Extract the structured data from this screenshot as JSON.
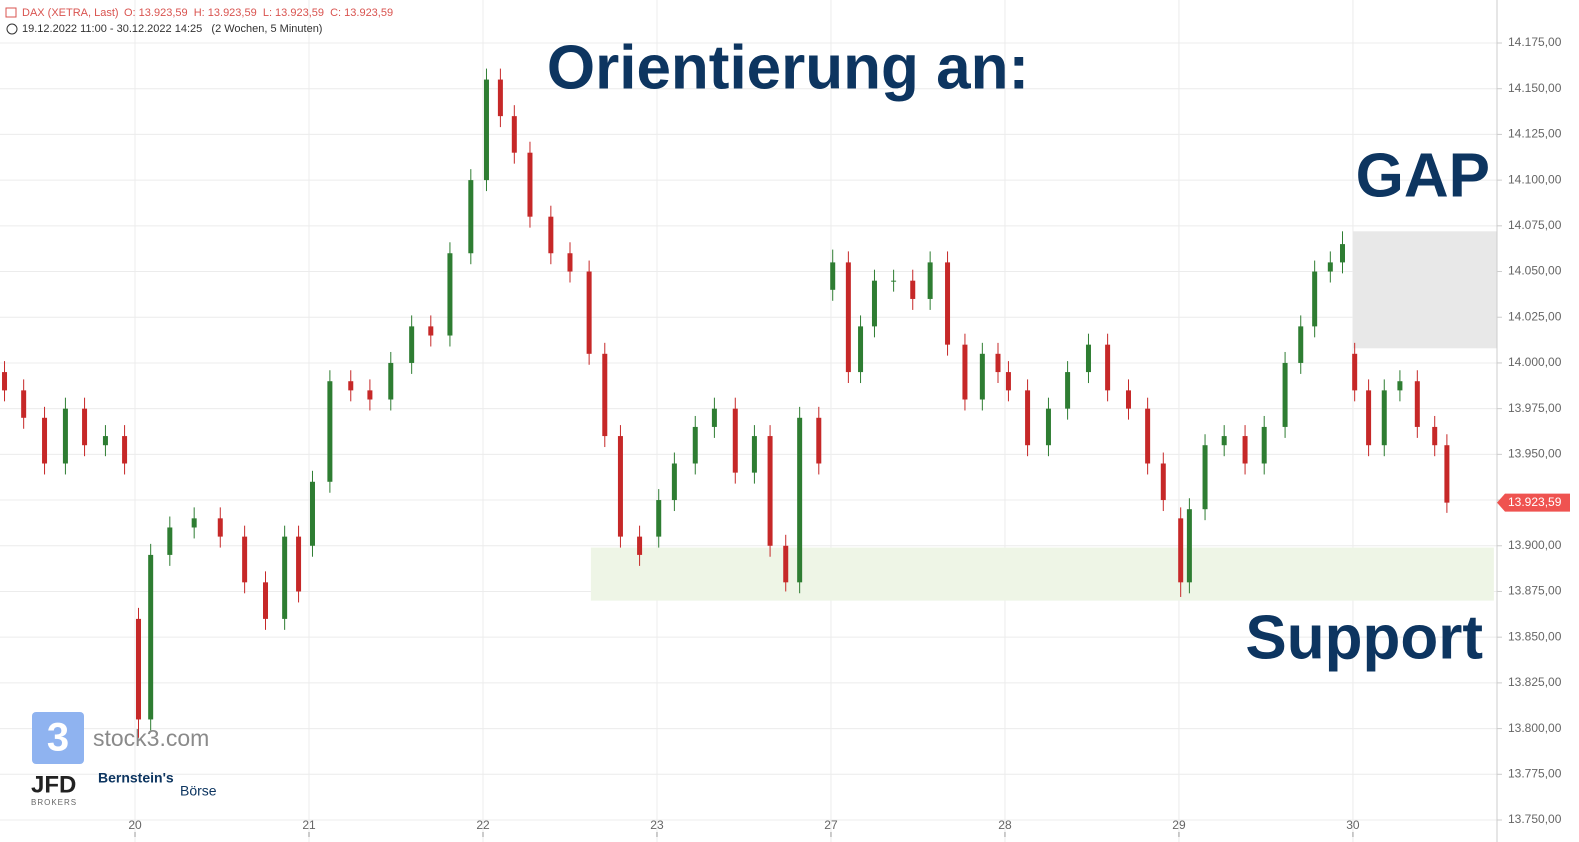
{
  "chart_data": {
    "type": "candlestick",
    "header": {
      "symbol": "DAX (XETRA, Last)",
      "ohlc": "O: 13.923,59  H: 13.923,59  L: 13.923,59  C: 13.923,59",
      "range": "19.12.2022 11:00 - 30.12.2022 14:25   (2 Wochen, 5 Minuten)"
    },
    "title": "Orientierung an:",
    "annotations": {
      "gap": "GAP",
      "support": "Support"
    },
    "logos": {
      "stock3": "stock3.com",
      "jfd": "JFD",
      "brokers": "BROKERS",
      "bernstein": "Bernstein's",
      "boerse": "Börse"
    },
    "last_price": {
      "value": 13923.59,
      "label": "13.923,59"
    },
    "x": [
      -0.75,
      -0.64,
      -0.52,
      -0.4,
      -0.29,
      -0.17,
      -0.06,
      0.02,
      0.09,
      0.2,
      0.34,
      0.49,
      0.63,
      0.75,
      0.86,
      0.94,
      1.02,
      1.12,
      1.24,
      1.35,
      1.47,
      1.59,
      1.7,
      1.81,
      1.93,
      2.02,
      2.1,
      2.18,
      2.27,
      2.39,
      2.5,
      2.61,
      2.7,
      2.79,
      2.9,
      3.01,
      3.1,
      3.22,
      3.33,
      3.45,
      3.56,
      3.65,
      3.74,
      3.82,
      3.93,
      4.01,
      4.1,
      4.17,
      4.25,
      4.36,
      4.47,
      4.57,
      4.67,
      4.77,
      4.87,
      4.96,
      5.02,
      5.13,
      5.25,
      5.36,
      5.48,
      5.59,
      5.71,
      5.82,
      5.91,
      6.01,
      6.06,
      6.15,
      6.26,
      6.38,
      6.49,
      6.61,
      6.7,
      6.78,
      6.87,
      6.94,
      7.01,
      7.09,
      7.18,
      7.27,
      7.37,
      7.47,
      7.54
    ],
    "open": [
      13995,
      13985,
      13970,
      13945,
      13975,
      13955,
      13960,
      13860,
      13805,
      13895,
      13910,
      13915,
      13905,
      13880,
      13860,
      13905,
      13900,
      13935,
      13990,
      13985,
      13980,
      14000,
      14020,
      14015,
      14060,
      14100,
      14155,
      14135,
      14115,
      14080,
      14060,
      14050,
      14005,
      13960,
      13905,
      13905,
      13925,
      13945,
      13965,
      13975,
      13940,
      13960,
      13900,
      13880,
      13970,
      14040,
      14055,
      13995,
      14020,
      14045,
      14045,
      14035,
      14055,
      14010,
      13980,
      14005,
      13995,
      13985,
      13955,
      13975,
      13995,
      14010,
      13985,
      13975,
      13945,
      13915,
      13880,
      13920,
      13955,
      13960,
      13945,
      13965,
      14000,
      14020,
      14050,
      14055,
      14005,
      13985,
      13955,
      13985,
      13990,
      13965,
      13955
    ],
    "high": [
      14001,
      13991,
      13976,
      13981,
      13981,
      13966,
      13966,
      13866,
      13901,
      13916,
      13921,
      13921,
      13911,
      13886,
      13911,
      13911,
      13941,
      13996,
      13996,
      13991,
      14006,
      14026,
      14026,
      14066,
      14106,
      14161,
      14161,
      14141,
      14121,
      14086,
      14066,
      14056,
      14011,
      13966,
      13911,
      13931,
      13951,
      13971,
      13981,
      13981,
      13966,
      13966,
      13906,
      13976,
      13976,
      14062,
      14061,
      14026,
      14051,
      14051,
      14051,
      14061,
      14061,
      14016,
      14011,
      14011,
      14001,
      13991,
      13981,
      14001,
      14016,
      14016,
      13991,
      13981,
      13951,
      13921,
      13926,
      13961,
      13966,
      13966,
      13971,
      14006,
      14026,
      14056,
      14061,
      14072,
      14011,
      13991,
      13991,
      13996,
      13996,
      13971,
      13961
    ],
    "low": [
      13979,
      13964,
      13939,
      13939,
      13949,
      13949,
      13939,
      13795,
      13799,
      13889,
      13904,
      13899,
      13874,
      13854,
      13854,
      13869,
      13894,
      13929,
      13979,
      13974,
      13974,
      13994,
      14009,
      14009,
      14054,
      14094,
      14129,
      14109,
      14074,
      14054,
      14044,
      13999,
      13954,
      13899,
      13889,
      13899,
      13919,
      13939,
      13959,
      13934,
      13934,
      13894,
      13875,
      13874,
      13939,
      14034,
      13989,
      13989,
      14014,
      14039,
      14029,
      14029,
      14004,
      13974,
      13974,
      13989,
      13979,
      13949,
      13949,
      13969,
      13989,
      13979,
      13969,
      13939,
      13919,
      13872,
      13874,
      13914,
      13949,
      13939,
      13939,
      13959,
      13994,
      14014,
      14044,
      14049,
      13979,
      13949,
      13949,
      13979,
      13959,
      13949,
      13918
    ],
    "close": [
      13985,
      13970,
      13945,
      13975,
      13955,
      13960,
      13945,
      13805,
      13895,
      13910,
      13915,
      13905,
      13880,
      13860,
      13905,
      13875,
      13935,
      13990,
      13985,
      13980,
      14000,
      14020,
      14015,
      14060,
      14100,
      14155,
      14135,
      14115,
      14080,
      14060,
      14050,
      14005,
      13960,
      13905,
      13895,
      13925,
      13945,
      13965,
      13975,
      13940,
      13960,
      13900,
      13880,
      13970,
      13945,
      14055,
      13995,
      14020,
      14045,
      14045,
      14035,
      14055,
      14010,
      13980,
      14005,
      13995,
      13985,
      13955,
      13975,
      13995,
      14010,
      13985,
      13975,
      13945,
      13925,
      13880,
      13920,
      13955,
      13960,
      13945,
      13965,
      14000,
      14020,
      14050,
      14055,
      14065,
      13985,
      13955,
      13985,
      13990,
      13965,
      13955,
      13923.59
    ],
    "up_color": "#2e7d32",
    "down_color": "#c62828",
    "zones": [
      {
        "name": "gap",
        "x": [
          7.0,
          7.83
        ],
        "y": [
          14008,
          14072
        ],
        "color": "#e8e8e8"
      },
      {
        "name": "support",
        "x": [
          2.62,
          7.81
        ],
        "y": [
          13870,
          13899
        ],
        "color": "#eef5e6"
      }
    ],
    "xlim": [
      -0.776,
      7.828
    ],
    "xticks": [
      {
        "value": 0,
        "label": "20"
      },
      {
        "value": 1,
        "label": "21"
      },
      {
        "value": 2,
        "label": "22"
      },
      {
        "value": 3,
        "label": "23"
      },
      {
        "value": 4,
        "label": "27"
      },
      {
        "value": 5,
        "label": "28"
      },
      {
        "value": 6,
        "label": "29"
      },
      {
        "value": 7,
        "label": "30"
      }
    ],
    "ylim": [
      13750,
      14175
    ],
    "yticks": [
      {
        "value": 13750,
        "label": "13.750,00"
      },
      {
        "value": 13775,
        "label": "13.775,00"
      },
      {
        "value": 13800,
        "label": "13.800,00"
      },
      {
        "value": 13825,
        "label": "13.825,00"
      },
      {
        "value": 13850,
        "label": "13.850,00"
      },
      {
        "value": 13875,
        "label": "13.875,00"
      },
      {
        "value": 13900,
        "label": "13.900,00"
      },
      {
        "value": 13925,
        "label": "13.925,00"
      },
      {
        "value": 13950,
        "label": "13.950,00"
      },
      {
        "value": 13975,
        "label": "13.975,00"
      },
      {
        "value": 14000,
        "label": "14.000,00"
      },
      {
        "value": 14025,
        "label": "14.025,00"
      },
      {
        "value": 14050,
        "label": "14.050,00"
      },
      {
        "value": 14075,
        "label": "14.075,00"
      },
      {
        "value": 14100,
        "label": "14.100,00"
      },
      {
        "value": 14125,
        "label": "14.125,00"
      },
      {
        "value": 14150,
        "label": "14.150,00"
      },
      {
        "value": 14175,
        "label": "14.175,00"
      }
    ],
    "grid": true
  }
}
